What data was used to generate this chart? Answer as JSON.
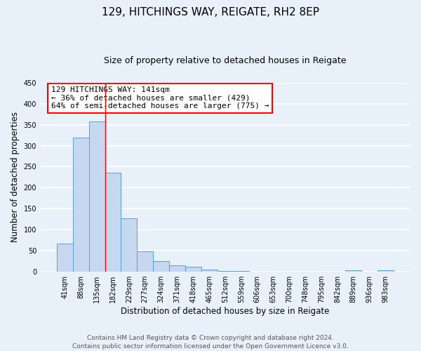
{
  "title": "129, HITCHINGS WAY, REIGATE, RH2 8EP",
  "subtitle": "Size of property relative to detached houses in Reigate",
  "xlabel": "Distribution of detached houses by size in Reigate",
  "ylabel": "Number of detached properties",
  "bin_labels": [
    "41sqm",
    "88sqm",
    "135sqm",
    "182sqm",
    "229sqm",
    "277sqm",
    "324sqm",
    "371sqm",
    "418sqm",
    "465sqm",
    "512sqm",
    "559sqm",
    "606sqm",
    "653sqm",
    "700sqm",
    "748sqm",
    "795sqm",
    "842sqm",
    "889sqm",
    "936sqm",
    "983sqm"
  ],
  "bar_values": [
    67,
    320,
    358,
    235,
    127,
    49,
    25,
    15,
    12,
    5,
    1,
    1,
    0,
    0,
    0,
    0,
    0,
    0,
    4,
    0,
    3
  ],
  "bar_color": "#c5d8f0",
  "bar_edge_color": "#5a9fd4",
  "ylim": [
    0,
    450
  ],
  "yticks": [
    0,
    50,
    100,
    150,
    200,
    250,
    300,
    350,
    400,
    450
  ],
  "red_line_index": 2,
  "annotation_title": "129 HITCHINGS WAY: 141sqm",
  "annotation_line1": "← 36% of detached houses are smaller (429)",
  "annotation_line2": "64% of semi-detached houses are larger (775) →",
  "footer_line1": "Contains HM Land Registry data © Crown copyright and database right 2024.",
  "footer_line2": "Contains public sector information licensed under the Open Government Licence v3.0.",
  "bg_color": "#e8f1fa",
  "grid_color": "#ffffff",
  "title_fontsize": 11,
  "subtitle_fontsize": 9,
  "axis_label_fontsize": 8.5,
  "tick_fontsize": 7,
  "annotation_fontsize": 8,
  "footer_fontsize": 6.5
}
